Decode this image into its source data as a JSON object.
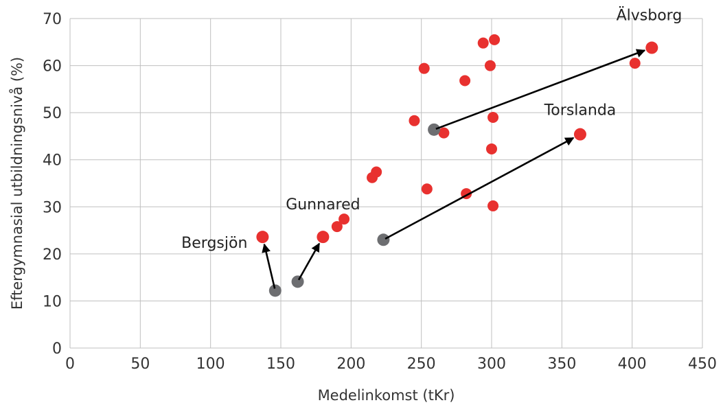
{
  "chart_data": {
    "type": "scatter",
    "xlabel": "Medelinkomst (tKr)",
    "ylabel": "Eftergymnasial utbildningsnivå (%)",
    "xlim": [
      0,
      450
    ],
    "ylim": [
      0,
      70
    ],
    "x_ticks": [
      0,
      50,
      100,
      150,
      200,
      250,
      300,
      350,
      400,
      450
    ],
    "y_ticks": [
      0,
      10,
      20,
      30,
      40,
      50,
      60,
      70
    ],
    "grid": true,
    "colors": {
      "current": "#e8312f",
      "earlier": "#6d6e71",
      "grid": "#bfbfbf",
      "arrow": "#000000"
    },
    "current_points": [
      {
        "x": 294,
        "y": 64.8
      },
      {
        "x": 302,
        "y": 65.5
      },
      {
        "x": 252,
        "y": 59.4
      },
      {
        "x": 299,
        "y": 60.0
      },
      {
        "x": 281,
        "y": 56.8
      },
      {
        "x": 402,
        "y": 60.5
      },
      {
        "x": 245,
        "y": 48.3
      },
      {
        "x": 301,
        "y": 49.0
      },
      {
        "x": 266,
        "y": 45.7
      },
      {
        "x": 300,
        "y": 42.3
      },
      {
        "x": 218,
        "y": 37.4
      },
      {
        "x": 215,
        "y": 36.2
      },
      {
        "x": 254,
        "y": 33.8
      },
      {
        "x": 282,
        "y": 32.8
      },
      {
        "x": 301,
        "y": 30.2
      },
      {
        "x": 195,
        "y": 27.4
      },
      {
        "x": 190,
        "y": 25.8
      }
    ],
    "highlighted": [
      {
        "name": "Älvsborg",
        "from": {
          "x": 259,
          "y": 46.4
        },
        "to": {
          "x": 414,
          "y": 63.8
        },
        "label_anchor": "end",
        "label_dx": 44,
        "label_dy": -40
      },
      {
        "name": "Torslanda",
        "from": {
          "x": 223,
          "y": 23.0
        },
        "to": {
          "x": 363,
          "y": 45.4
        },
        "label_anchor": "middle",
        "label_dx": 0,
        "label_dy": -28
      },
      {
        "name": "Gunnared",
        "from": {
          "x": 162,
          "y": 14.1
        },
        "to": {
          "x": 180,
          "y": 23.6
        },
        "label_anchor": "middle",
        "label_dx": 0,
        "label_dy": -40
      },
      {
        "name": "Bergsjön",
        "from": {
          "x": 146,
          "y": 12.2
        },
        "to": {
          "x": 137,
          "y": 23.6
        },
        "label_anchor": "end",
        "label_dx": -22,
        "label_dy": 16
      }
    ]
  }
}
